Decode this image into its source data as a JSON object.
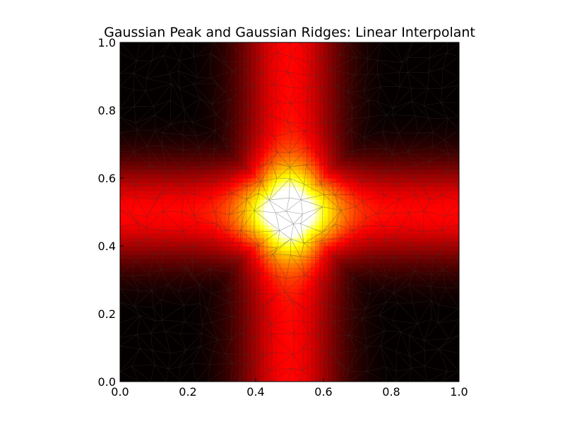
{
  "chart_data": {
    "type": "heatmap",
    "title": "Gaussian Peak and Gaussian Ridges: Linear Interpolant",
    "xlabel": "",
    "ylabel": "",
    "xlim": [
      0.0,
      1.0
    ],
    "ylim": [
      0.0,
      1.0
    ],
    "x_ticks": [
      0.0,
      0.2,
      0.4,
      0.6,
      0.8,
      1.0
    ],
    "y_ticks": [
      0.0,
      0.2,
      0.4,
      0.6,
      0.8,
      1.0
    ],
    "x_tick_labels": [
      "0.0",
      "0.2",
      "0.4",
      "0.6",
      "0.8",
      "1.0"
    ],
    "y_tick_labels": [
      "0.0",
      "0.2",
      "0.4",
      "0.6",
      "0.8",
      "1.0"
    ],
    "colormap": "hot",
    "grid": false,
    "overlay": "triangulation mesh",
    "surface": {
      "peak_center": [
        0.5,
        0.5
      ],
      "ridge_x_center": 0.5,
      "ridge_y_center": 0.5,
      "description_only_in_script": true
    },
    "colors": {
      "low": "#000000",
      "mid": "#ff0000",
      "high": "#ffff00",
      "top": "#ffffff",
      "mesh": "#333333"
    }
  }
}
